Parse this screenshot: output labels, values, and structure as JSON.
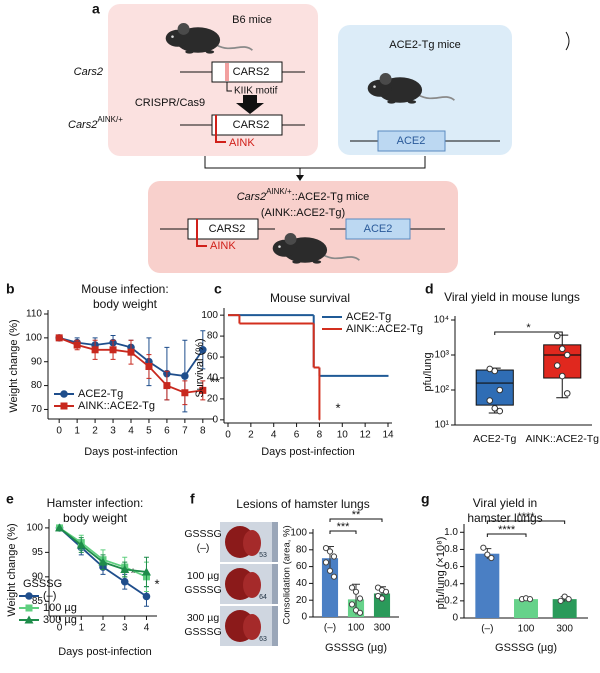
{
  "panel_a": {
    "label": "a",
    "b6_mice": "B6 mice",
    "cars2_gene": "Cars2",
    "cars2_box": "CARS2",
    "motif": "KIIK motif",
    "method": "CRISPR/Cas9",
    "mutant_gene": "Cars2",
    "mutant_sup": "AINK/+",
    "mutant_box": "CARS2",
    "mutant_tag": "AINK",
    "tg_mice": "ACE2-Tg mice",
    "tg_box": "ACE2",
    "cross_gene": "Cars2",
    "cross_sup": "AINK/+",
    "cross_rest": "::ACE2-Tg mice",
    "cross_abbrev": "(AINK::ACE2-Tg)",
    "cross_cars2_box": "CARS2",
    "cross_tag": "AINK",
    "cross_ace2_box": "ACE2"
  },
  "chart_data": [
    {
      "type": "line",
      "label": "b",
      "title": "Mouse infection:",
      "subtitle": "body weight",
      "x_label": "Days post-infection",
      "y_label": "Weight change (%)",
      "x": [
        0,
        1,
        2,
        3,
        4,
        5,
        6,
        7,
        8
      ],
      "xlim": [
        -0.4,
        8.4
      ],
      "xticks": [
        0,
        1,
        2,
        3,
        4,
        5,
        6,
        7,
        8
      ],
      "ylim": [
        66,
        110
      ],
      "yticks": [
        70,
        80,
        90,
        100,
        110
      ],
      "series": [
        {
          "name": "ACE2-Tg",
          "color": "#1f4e8c",
          "marker": "circle",
          "values": [
            100,
            98,
            97,
            98,
            96,
            90,
            85,
            84,
            95
          ],
          "errors": [
            0,
            2,
            3,
            3,
            3,
            10,
            11,
            15,
            8
          ]
        },
        {
          "name": "AINK::ACE2-Tg",
          "color": "#c8281e",
          "marker": "square",
          "values": [
            100,
            97,
            95,
            95,
            94,
            88,
            80,
            77,
            78
          ],
          "errors": [
            0,
            2,
            4,
            4,
            5,
            5,
            6,
            5,
            4
          ]
        }
      ],
      "legend": "lower left",
      "annotations": [
        "**"
      ]
    },
    {
      "type": "step",
      "label": "c",
      "title": "Mouse survival",
      "x_label": "Days post-infection",
      "y_label": "Survival (%)",
      "xlim": [
        0,
        14
      ],
      "xticks": [
        0,
        2,
        4,
        6,
        8,
        10,
        12,
        14
      ],
      "ylim": [
        -3,
        103
      ],
      "yticks": [
        0,
        20,
        40,
        60,
        80,
        100
      ],
      "series": [
        {
          "name": "ACE2-Tg",
          "color": "#1f5a96",
          "x": [
            0,
            7.5,
            8,
            14
          ],
          "values": [
            100,
            50,
            42,
            42
          ]
        },
        {
          "name": "AINK::ACE2-Tg",
          "color": "#d32f1e",
          "x": [
            0,
            1,
            7.5,
            8
          ],
          "values": [
            100,
            92,
            50,
            0
          ]
        }
      ],
      "legend": "upper right",
      "annotations": [
        "*"
      ]
    },
    {
      "type": "box",
      "label": "d",
      "title": "Viral yield in mouse lungs",
      "y_label": "pfu/lung",
      "log_y": true,
      "ylim": [
        10,
        10000
      ],
      "yticks": [
        {
          "value": 10,
          "label": "10¹"
        },
        {
          "value": 100,
          "label": "10²"
        },
        {
          "value": 1000,
          "label": "10³"
        },
        {
          "value": 10000,
          "label": "10⁴"
        }
      ],
      "categories": [
        "ACE2-Tg",
        "AINK::ACE2-Tg"
      ],
      "boxes": [
        {
          "color": "#2f6db5",
          "whislo": 22,
          "q1": 37,
          "med": 158,
          "q3": 372,
          "whishi": 420,
          "points": [
            400,
            350,
            100,
            50,
            30,
            25
          ]
        },
        {
          "color": "#e0281e",
          "whislo": 60,
          "q1": 220,
          "med": 1000,
          "q3": 1950,
          "whishi": 3700,
          "points": [
            3500,
            1500,
            1000,
            500,
            250,
            80
          ]
        }
      ],
      "significance": [
        "*"
      ]
    },
    {
      "type": "line",
      "label": "e",
      "title": "Hamster infection:",
      "subtitle": "body weight",
      "x_label": "Days post-infection",
      "y_label": "Weight change (%)",
      "x": [
        0,
        1,
        2,
        3,
        4
      ],
      "xlim": [
        -0.3,
        4.3
      ],
      "xticks": [
        0,
        1,
        2,
        3,
        4
      ],
      "ylim": [
        82,
        101
      ],
      "yticks": [
        85,
        90,
        95,
        100
      ],
      "series": [
        {
          "name": "(–)",
          "color": "#1f4e8c",
          "marker": "circle",
          "values": [
            100,
            96,
            92,
            89,
            86
          ],
          "errors": [
            0,
            1.5,
            1.5,
            1.5,
            2
          ]
        },
        {
          "name": "100 µg",
          "color": "#5fcf7f",
          "marker": "square",
          "values": [
            100,
            97,
            93.5,
            92,
            90
          ],
          "errors": [
            0,
            1.5,
            2,
            2,
            3
          ]
        },
        {
          "name": "300 µg",
          "color": "#1e8c4a",
          "marker": "triangle",
          "values": [
            100,
            96.5,
            93,
            91.5,
            91
          ],
          "errors": [
            0,
            1.5,
            1.5,
            1.5,
            3
          ]
        }
      ],
      "legend": "lower left",
      "legend_title": "GSSSG",
      "annotations": [
        "*",
        "*"
      ]
    },
    {
      "type": "bar",
      "label": "f",
      "title": "Lesions of hamster lungs",
      "x_label": "GSSSG (µg)",
      "y_label": "Consolidation (area, %)",
      "categories": [
        "(–)",
        "100",
        "300"
      ],
      "values": [
        70,
        21,
        28
      ],
      "errors": [
        14,
        18,
        8
      ],
      "colors": [
        "#4a7fc4",
        "#66d28a",
        "#2a9a5a"
      ],
      "points": [
        [
          82,
          78,
          72,
          65,
          55,
          48
        ],
        [
          35,
          30,
          22,
          15,
          8,
          5
        ],
        [
          35,
          32,
          30,
          25,
          22
        ]
      ],
      "ylim": [
        0,
        100
      ],
      "yticks": [
        0,
        20,
        40,
        60,
        80,
        100
      ],
      "significance": [
        "***",
        "**"
      ],
      "images": [
        {
          "lines": [
            "GSSSG",
            "(–)"
          ],
          "number": 53
        },
        {
          "lines": [
            "100 µg",
            "GSSSG"
          ],
          "number": 64
        },
        {
          "lines": [
            "300 µg",
            "GSSSG"
          ],
          "number": 63
        }
      ]
    },
    {
      "type": "bar",
      "label": "g",
      "title": "Viral yield in",
      "subtitle": "hamster lungs",
      "x_label": "GSSSG (µg)",
      "y_label": "pfu/lung (×10⁸)",
      "categories": [
        "(–)",
        "100",
        "300"
      ],
      "values": [
        0.75,
        0.22,
        0.22
      ],
      "errors": [
        0.06,
        0.01,
        0.03
      ],
      "colors": [
        "#4a7fc4",
        "#66d28a",
        "#2a9a5a"
      ],
      "points": [
        [
          0.82,
          0.74,
          0.7
        ],
        [
          0.22,
          0.23,
          0.22
        ],
        [
          0.2,
          0.25,
          0.22
        ]
      ],
      "ylim": [
        0,
        1.05
      ],
      "yticks": [
        0,
        0.2,
        0.4,
        0.6,
        0.8,
        {
          "value": 1,
          "label": "1.0"
        }
      ],
      "significance": [
        "****",
        "****"
      ]
    }
  ]
}
